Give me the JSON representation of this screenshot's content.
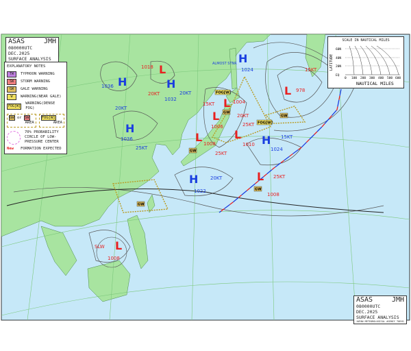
{
  "title": {
    "agency": "ASAS",
    "issuer": "JMH",
    "time": "080000UTC DEC.2025",
    "subtitle": "SURFACE ANALYSIS",
    "footer": "JAPAN METEOROLOGICAL AGENCY TOKYO"
  },
  "notes": {
    "heading": "EXPLANATORY NOTES",
    "items": [
      {
        "tag": "TW",
        "label": "TYPHOON WARNING",
        "color": "#c080e0"
      },
      {
        "tag": "SW",
        "label": "STORM WARNING",
        "color": "#f08080"
      },
      {
        "tag": "GW",
        "label": "GALE WARNING",
        "color": "#e0c060"
      },
      {
        "tag": "W",
        "label": "WARNING(NEAR GALE)",
        "color": "#f0e060"
      },
      {
        "tag": "FOG[W]",
        "label": "WARNING(DENSE FOG)",
        "color": "#f0e060"
      }
    ],
    "area_or": "or",
    "area_label": "AREA",
    "area_gw": "GW",
    "area_sw": "SW",
    "area_fog": "FOG[W]",
    "circle_label": "70% PROBABILITY CIRCLE OF LOW-PRESSURE CENTER",
    "new_tag": "New",
    "new_label": "FORMATION EXPECTED"
  },
  "scale": {
    "title": "SCALE IN NAUTICAL MILES",
    "ylabel": "LATITUDE",
    "xlabel": "NAUTICAL MILES",
    "lat_ticks": [
      "60N",
      "40N",
      "20N",
      "EQ"
    ],
    "nm_ticks": [
      "0",
      "100",
      "200",
      "300",
      "400",
      "500",
      "600"
    ]
  },
  "systems": [
    {
      "type": "H",
      "pressure": "1036",
      "speed": "20KT"
    },
    {
      "type": "L",
      "pressure": "1018",
      "speed": "20KT"
    },
    {
      "type": "H",
      "pressure": "1032",
      "speed": "20KT"
    },
    {
      "type": "H",
      "pressure": "1036",
      "speed": "25KT"
    },
    {
      "type": "H",
      "pressure": "1024",
      "speed": "ALMOST STNR"
    },
    {
      "type": "L",
      "pressure": "978",
      "speed": "15KT"
    },
    {
      "type": "L",
      "pressure": "1004",
      "speed": "15KT"
    },
    {
      "type": "L",
      "pressure": "1006",
      "speed": "20KT"
    },
    {
      "type": "L",
      "pressure": "1010",
      "speed": "25KT"
    },
    {
      "type": "L",
      "pressure": "1008",
      "speed": "25KT"
    },
    {
      "type": "H",
      "pressure": "1024",
      "speed": "15KT"
    },
    {
      "type": "H",
      "pressure": "1022",
      "speed": "20KT"
    },
    {
      "type": "L",
      "pressure": "1008",
      "speed": "25KT"
    },
    {
      "type": "L",
      "pressure": "1008",
      "speed": "SLW"
    }
  ],
  "warnings": [
    "GW",
    "GW",
    "GW",
    "GW",
    "GW",
    "FOG[W]",
    "FOG[W]"
  ],
  "colors": {
    "land": "#a8e4a0",
    "sea": "#c6e8f8",
    "high": "#1a3ee0",
    "low": "#e82020",
    "warning_border": "#b89a20"
  }
}
